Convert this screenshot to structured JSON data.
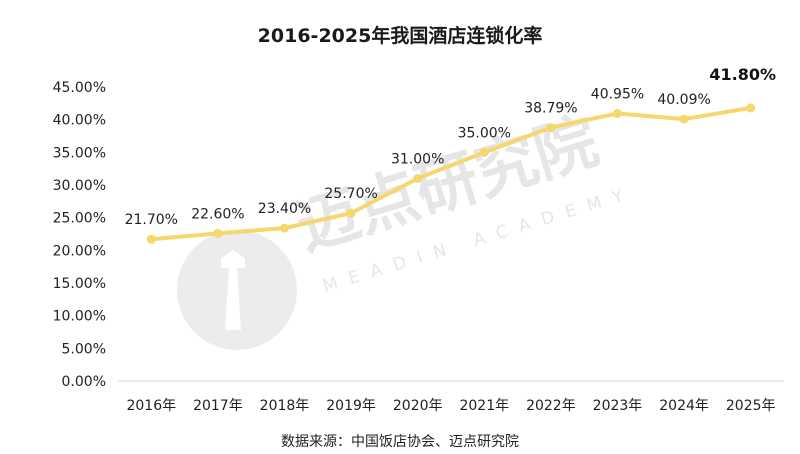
{
  "chart_data": {
    "type": "line",
    "title": "2016-2025年我国酒店连锁化率",
    "categories": [
      "2016年",
      "2017年",
      "2018年",
      "2019年",
      "2020年",
      "2021年",
      "2022年",
      "2023年",
      "2024年",
      "2025年"
    ],
    "series": [
      {
        "values": [
          21.7,
          22.6,
          23.4,
          25.7,
          31.0,
          35.0,
          38.79,
          40.95,
          40.09,
          41.8
        ],
        "labels": [
          "21.70%",
          "22.60%",
          "23.40%",
          "25.70%",
          "31.00%",
          "35.00%",
          "38.79%",
          "40.95%",
          "40.09%",
          "41.80%"
        ],
        "color": "#f5d76e"
      }
    ],
    "ylim": [
      0,
      45
    ],
    "yticks": [
      "0.00%",
      "5.00%",
      "10.00%",
      "15.00%",
      "20.00%",
      "25.00%",
      "30.00%",
      "35.00%",
      "40.00%",
      "45.00%"
    ],
    "grid": false,
    "legend": "none"
  },
  "source": "数据来源：中国饭店协会、迈点研究院",
  "watermark": {
    "name": "迈点研究院",
    "sub": "MEADIN ACADEMY"
  },
  "colors": {
    "line": "#f5d76e",
    "axis": "#d9d9d9",
    "watermark": "#e6e6e6"
  }
}
